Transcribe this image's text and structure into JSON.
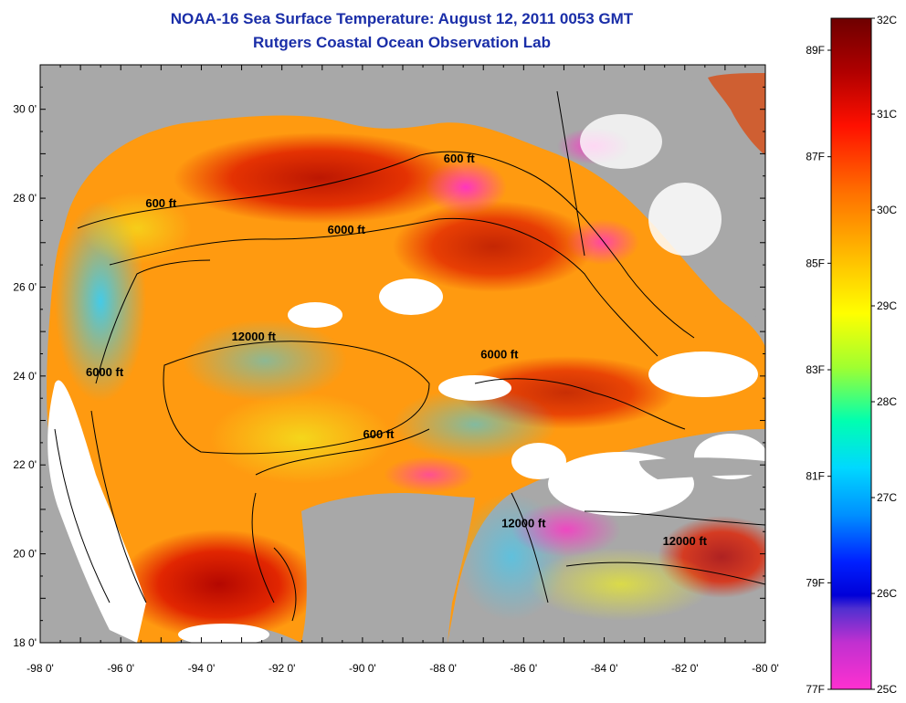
{
  "title": {
    "line1": "NOAA-16 Sea Surface Temperature:  August 12, 2011 0053 GMT",
    "line2": "Rutgers Coastal Ocean Observation Lab"
  },
  "map": {
    "lon_range": [
      -98,
      -80
    ],
    "lat_range": [
      18,
      31
    ],
    "x_ticks": [
      "-98 0'",
      "-96 0'",
      "-94 0'",
      "-92 0'",
      "-90 0'",
      "-88 0'",
      "-86 0'",
      "-84 0'",
      "-82 0'",
      "-80 0'"
    ],
    "y_ticks": [
      "30 0'",
      "28 0'",
      "26 0'",
      "24 0'",
      "22 0'",
      "20 0'",
      "18 0'"
    ],
    "land_color": "#a8a8a8",
    "cloud_color": "#ffffff",
    "contour_labels": [
      {
        "text": "600 ft",
        "lon": -87.6,
        "lat": 28.8
      },
      {
        "text": "600 ft",
        "lon": -95.0,
        "lat": 27.8
      },
      {
        "text": "6000 ft",
        "lon": -90.4,
        "lat": 27.2
      },
      {
        "text": "12000 ft",
        "lon": -92.7,
        "lat": 24.8
      },
      {
        "text": "6000 ft",
        "lon": -96.4,
        "lat": 24.0
      },
      {
        "text": "6000 ft",
        "lon": -86.6,
        "lat": 24.4
      },
      {
        "text": "600 ft",
        "lon": -89.6,
        "lat": 22.6
      },
      {
        "text": "12000 ft",
        "lon": -86.0,
        "lat": 20.6
      },
      {
        "text": "12000 ft",
        "lon": -82.0,
        "lat": 20.2
      }
    ]
  },
  "colorbar": {
    "celsius": [
      "32C",
      "31C",
      "30C",
      "29C",
      "28C",
      "27C",
      "26C",
      "25C"
    ],
    "fahrenheit": [
      "89F",
      "87F",
      "85F",
      "83F",
      "81F",
      "79F",
      "77F"
    ],
    "celsius_values": [
      32,
      31,
      30,
      29,
      28,
      27,
      26,
      25
    ],
    "fahrenheit_values": [
      89,
      87,
      85,
      83,
      81,
      79,
      77
    ],
    "colors": [
      "#7a0000",
      "#d00000",
      "#ff2a00",
      "#ff8c00",
      "#ffd000",
      "#f6ff00",
      "#90ff40",
      "#00ffd0",
      "#00b0ff",
      "#0040ff",
      "#0000d0",
      "#8030c0",
      "#ff30c0",
      "#ff40d8"
    ]
  }
}
